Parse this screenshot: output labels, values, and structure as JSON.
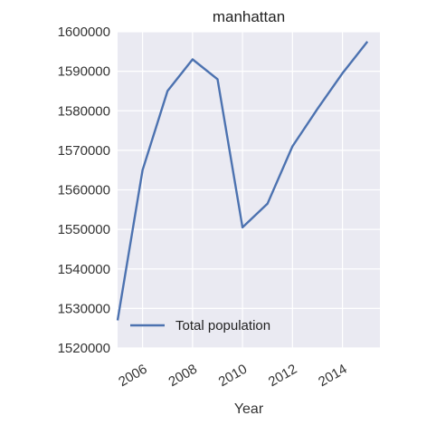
{
  "chart_data": {
    "type": "line",
    "title": "manhattan",
    "xlabel": "Year",
    "ylabel": "",
    "x": [
      2005,
      2006,
      2007,
      2008,
      2009,
      2010,
      2011,
      2012,
      2013,
      2014,
      2015
    ],
    "series": [
      {
        "name": "Total population",
        "color": "#4c72b0",
        "values": [
          1527000,
          1565000,
          1585000,
          1593000,
          1588000,
          1550500,
          1556500,
          1571000,
          1580500,
          1589500,
          1597500
        ]
      }
    ],
    "xlim": [
      2005,
      2015.5
    ],
    "ylim": [
      1520000,
      1600000
    ],
    "x_ticks": [
      2006,
      2008,
      2010,
      2012,
      2014
    ],
    "x_tick_labels": [
      "2006",
      "2008",
      "2010",
      "2012",
      "2014"
    ],
    "y_ticks": [
      1520000,
      1530000,
      1540000,
      1550000,
      1560000,
      1570000,
      1580000,
      1590000,
      1600000
    ],
    "y_tick_labels": [
      "1520000",
      "1530000",
      "1540000",
      "1550000",
      "1560000",
      "1570000",
      "1580000",
      "1590000",
      "1600000"
    ],
    "grid": true,
    "legend_position": "bottom-left",
    "background_color": "#eaeaf2",
    "grid_color": "#ffffff"
  }
}
